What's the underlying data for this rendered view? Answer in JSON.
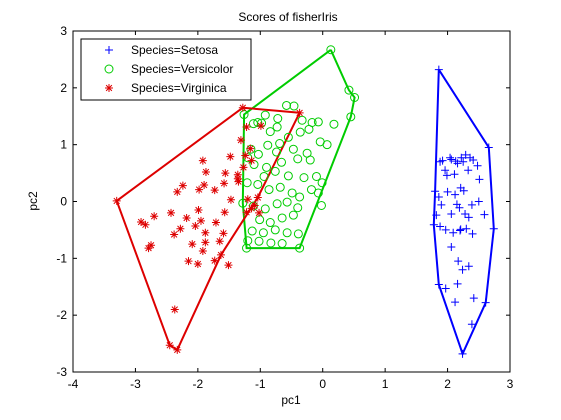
{
  "chart_data": {
    "type": "scatter",
    "title": "Scores of fisherIris",
    "xlabel": "pc1",
    "ylabel": "pc2",
    "xlim": [
      -4,
      3
    ],
    "ylim": [
      -3,
      3
    ],
    "xticks": [
      "-4",
      "-3",
      "-2",
      "-1",
      "0",
      "1",
      "2",
      "3"
    ],
    "yticks": [
      "-3",
      "-2",
      "-1",
      "0",
      "1",
      "2",
      "3"
    ],
    "grid": false,
    "legend_position": "top-left",
    "series": [
      {
        "name": "Species=Setosa",
        "color": "#0000ff",
        "marker": "plus",
        "points": [
          [
            1.86,
            2.32
          ],
          [
            1.88,
            0.7
          ],
          [
            1.92,
            0.72
          ],
          [
            1.96,
            0.55
          ],
          [
            1.99,
            0.46
          ],
          [
            2.04,
            0.77
          ],
          [
            2.06,
            0.74
          ],
          [
            2.11,
            0.48
          ],
          [
            2.13,
            0.71
          ],
          [
            2.16,
            0.67
          ],
          [
            2.22,
            0.77
          ],
          [
            2.25,
            0.7
          ],
          [
            2.29,
            0.82
          ],
          [
            2.33,
            0.55
          ],
          [
            2.36,
            0.77
          ],
          [
            2.41,
            0.73
          ],
          [
            2.48,
            0.63
          ],
          [
            2.51,
            0.39
          ],
          [
            2.66,
            0.95
          ],
          [
            1.8,
            0.18
          ],
          [
            1.86,
            0.08
          ],
          [
            1.9,
            -0.06
          ],
          [
            2.0,
            0.17
          ],
          [
            2.06,
            -0.22
          ],
          [
            2.12,
            0.12
          ],
          [
            2.15,
            -0.05
          ],
          [
            2.19,
            -0.11
          ],
          [
            2.26,
            0.19
          ],
          [
            2.28,
            -0.22
          ],
          [
            2.34,
            -0.28
          ],
          [
            2.39,
            -0.06
          ],
          [
            2.5,
            0.0
          ],
          [
            2.21,
            0.24
          ],
          [
            2.2,
            -0.51
          ],
          [
            1.78,
            -0.41
          ],
          [
            1.82,
            -0.24
          ],
          [
            1.88,
            -0.44
          ],
          [
            1.97,
            -0.5
          ],
          [
            2.09,
            -0.55
          ],
          [
            2.21,
            -0.49
          ],
          [
            2.3,
            -0.48
          ],
          [
            2.4,
            -0.57
          ],
          [
            2.59,
            -0.23
          ],
          [
            2.74,
            -0.48
          ],
          [
            2.06,
            -0.8
          ],
          [
            2.17,
            -1.05
          ],
          [
            2.24,
            -1.2
          ],
          [
            2.34,
            -1.14
          ],
          [
            1.86,
            -1.46
          ],
          [
            1.97,
            -1.53
          ],
          [
            2.16,
            -1.45
          ],
          [
            2.12,
            -1.77
          ],
          [
            2.42,
            -1.7
          ],
          [
            2.61,
            -1.78
          ],
          [
            2.39,
            -2.16
          ],
          [
            2.24,
            -2.68
          ]
        ],
        "hull": [
          [
            1.86,
            2.32
          ],
          [
            2.66,
            0.95
          ],
          [
            2.74,
            -0.48
          ],
          [
            2.61,
            -1.78
          ],
          [
            2.24,
            -2.68
          ],
          [
            1.86,
            -1.46
          ],
          [
            1.78,
            -0.41
          ],
          [
            1.8,
            0.18
          ],
          [
            1.86,
            2.32
          ]
        ]
      },
      {
        "name": "Species=Versicolor",
        "color": "#00cc00",
        "marker": "circle",
        "points": [
          [
            0.13,
            2.67
          ],
          [
            0.42,
            1.96
          ],
          [
            0.51,
            1.83
          ],
          [
            0.45,
            1.49
          ],
          [
            0.18,
            1.36
          ],
          [
            -0.07,
            1.4
          ],
          [
            -0.17,
            1.39
          ],
          [
            -0.33,
            1.43
          ],
          [
            -0.46,
            1.68
          ],
          [
            -0.58,
            1.69
          ],
          [
            -0.72,
            1.46
          ],
          [
            -0.92,
            1.52
          ],
          [
            -1.04,
            1.39
          ],
          [
            -1.11,
            1.37
          ],
          [
            -1.26,
            1.53
          ],
          [
            -0.98,
            1.38
          ],
          [
            -0.84,
            1.23
          ],
          [
            -0.73,
            1.31
          ],
          [
            -0.69,
            1.02
          ],
          [
            -0.55,
            1.13
          ],
          [
            -0.36,
            1.22
          ],
          [
            -0.22,
            1.27
          ],
          [
            -0.04,
            1.05
          ],
          [
            0.07,
            1.0
          ],
          [
            -0.88,
            0.99
          ],
          [
            -1.15,
            0.92
          ],
          [
            -1.03,
            0.83
          ],
          [
            -0.74,
            0.87
          ],
          [
            -0.47,
            0.92
          ],
          [
            -0.25,
            0.85
          ],
          [
            -1.2,
            0.77
          ],
          [
            -1.1,
            0.65
          ],
          [
            -0.9,
            0.6
          ],
          [
            -0.66,
            0.69
          ],
          [
            -0.4,
            0.75
          ],
          [
            -0.2,
            0.73
          ],
          [
            -0.94,
            0.44
          ],
          [
            -0.76,
            0.53
          ],
          [
            -0.55,
            0.45
          ],
          [
            -0.3,
            0.42
          ],
          [
            -0.1,
            0.44
          ],
          [
            -0.01,
            0.33
          ],
          [
            -1.21,
            0.33
          ],
          [
            -1.04,
            0.3
          ],
          [
            -0.86,
            0.21
          ],
          [
            -0.68,
            0.25
          ],
          [
            -0.49,
            0.15
          ],
          [
            -0.37,
            0.08
          ],
          [
            -0.18,
            0.21
          ],
          [
            -0.07,
            0.15
          ],
          [
            -0.02,
            -0.07
          ],
          [
            -1.28,
            -0.03
          ],
          [
            -1.11,
            -0.08
          ],
          [
            -0.92,
            -0.13
          ],
          [
            -0.73,
            -0.04
          ],
          [
            -0.57,
            -0.01
          ],
          [
            -0.4,
            -0.11
          ],
          [
            -1.01,
            -0.32
          ],
          [
            -0.84,
            -0.37
          ],
          [
            -0.65,
            -0.29
          ],
          [
            -0.47,
            -0.24
          ],
          [
            -1.13,
            -0.52
          ],
          [
            -0.95,
            -0.55
          ],
          [
            -0.76,
            -0.5
          ],
          [
            -0.57,
            -0.55
          ],
          [
            -0.39,
            -0.57
          ],
          [
            -1.2,
            -0.69
          ],
          [
            -1.02,
            -0.7
          ],
          [
            -0.83,
            -0.73
          ],
          [
            -0.65,
            -0.74
          ],
          [
            -1.22,
            -0.82
          ],
          [
            -0.37,
            -0.82
          ]
        ],
        "hull": [
          [
            0.13,
            2.67
          ],
          [
            0.42,
            1.96
          ],
          [
            0.51,
            1.83
          ],
          [
            0.45,
            1.49
          ],
          [
            -0.37,
            -0.82
          ],
          [
            -1.22,
            -0.82
          ],
          [
            -1.28,
            -0.03
          ],
          [
            -1.26,
            1.53
          ],
          [
            0.13,
            2.67
          ]
        ]
      },
      {
        "name": "Species=Virginica",
        "color": "#dd0000",
        "marker": "star",
        "points": [
          [
            -1.28,
            1.65
          ],
          [
            -0.37,
            1.56
          ],
          [
            -1.22,
            1.31
          ],
          [
            -0.99,
            1.33
          ],
          [
            -1.31,
            1.08
          ],
          [
            -1.16,
            0.93
          ],
          [
            -1.24,
            0.81
          ],
          [
            -1.14,
            0.72
          ],
          [
            -1.48,
            0.79
          ],
          [
            -1.27,
            0.6
          ],
          [
            -1.56,
            0.5
          ],
          [
            -1.36,
            0.47
          ],
          [
            -1.92,
            0.72
          ],
          [
            -1.87,
            0.52
          ],
          [
            -1.9,
            0.29
          ],
          [
            -1.98,
            0.21
          ],
          [
            -2.24,
            0.28
          ],
          [
            -1.36,
            0.4
          ],
          [
            -1.35,
            0.35
          ],
          [
            -1.58,
            0.32
          ],
          [
            -1.73,
            0.2
          ],
          [
            -2.33,
            0.17
          ],
          [
            -1.47,
            0.03
          ],
          [
            -1.2,
            0.04
          ],
          [
            -1.04,
            0.07
          ],
          [
            -1.09,
            -0.07
          ],
          [
            -1.14,
            -0.12
          ],
          [
            -1.02,
            -0.2
          ],
          [
            -1.22,
            -0.19
          ],
          [
            -1.57,
            -0.19
          ],
          [
            -1.99,
            -0.15
          ],
          [
            -2.18,
            -0.29
          ],
          [
            -2.43,
            -0.2
          ],
          [
            -2.7,
            -0.26
          ],
          [
            -2.91,
            -0.36
          ],
          [
            -2.84,
            -0.41
          ],
          [
            -2.75,
            -0.77
          ],
          [
            -2.79,
            -0.82
          ],
          [
            -3.3,
            0.01
          ],
          [
            -1.95,
            -0.34
          ],
          [
            -1.71,
            -0.37
          ],
          [
            -2.04,
            -0.43
          ],
          [
            -2.28,
            -0.48
          ],
          [
            -2.38,
            -0.58
          ],
          [
            -1.65,
            -0.7
          ],
          [
            -1.88,
            -0.72
          ],
          [
            -2.09,
            -0.75
          ],
          [
            -1.92,
            -0.87
          ],
          [
            -1.63,
            -0.94
          ],
          [
            -2.0,
            -1.1
          ],
          [
            -1.73,
            -1.04
          ],
          [
            -2.15,
            -1.05
          ],
          [
            -1.51,
            -1.12
          ],
          [
            -2.37,
            -1.9
          ],
          [
            -2.45,
            -2.53
          ],
          [
            -2.33,
            -2.61
          ],
          [
            -1.59,
            -0.56
          ],
          [
            -1.88,
            -0.55
          ]
        ],
        "hull": [
          [
            -1.28,
            1.65
          ],
          [
            -0.37,
            1.56
          ],
          [
            -1.04,
            0.07
          ],
          [
            -1.63,
            -0.94
          ],
          [
            -2.33,
            -2.61
          ],
          [
            -2.45,
            -2.53
          ],
          [
            -3.3,
            0.01
          ],
          [
            -1.28,
            1.65
          ]
        ]
      }
    ]
  }
}
